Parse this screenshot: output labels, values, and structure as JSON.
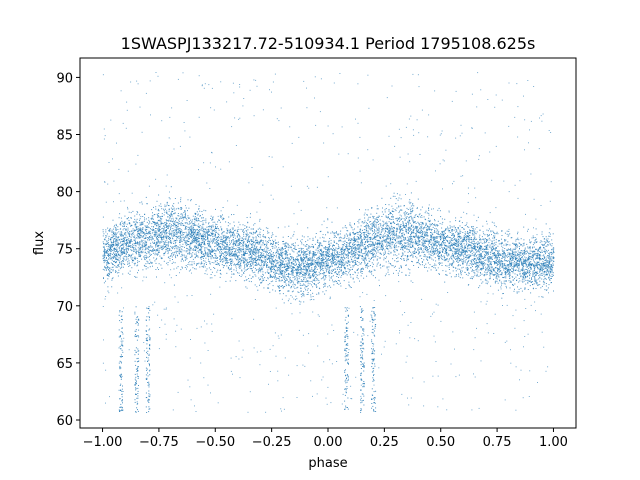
{
  "chart_data": {
    "type": "scatter",
    "title": "1SWASPJ133217.72-510934.1 Period 1795108.625s",
    "xlabel": "phase",
    "ylabel": "flux",
    "xlim": [
      -1.1,
      1.1
    ],
    "ylim": [
      59.3,
      91.7
    ],
    "xticks": [
      -1.0,
      -0.75,
      -0.5,
      -0.25,
      0.0,
      0.25,
      0.5,
      0.75,
      1.0
    ],
    "xtick_labels": [
      "−1.00",
      "−0.75",
      "−0.50",
      "−0.25",
      "0.00",
      "0.25",
      "0.50",
      "0.75",
      "1.00"
    ],
    "yticks": [
      60,
      65,
      70,
      75,
      80,
      85,
      90
    ],
    "ytick_labels": [
      "60",
      "65",
      "70",
      "75",
      "80",
      "85",
      "90"
    ],
    "grid": false,
    "marker_color": "#1f77b4",
    "x_range_data": [
      -1.0,
      1.0
    ],
    "y_range_data": [
      60.7,
      90.5
    ],
    "envelope": {
      "phase": [
        -1.0,
        -0.9,
        -0.8,
        -0.7,
        -0.6,
        -0.5,
        -0.4,
        -0.3,
        -0.2,
        -0.1,
        0.0,
        0.1,
        0.2,
        0.3,
        0.4,
        0.5,
        0.6,
        0.7,
        0.8,
        0.9,
        1.0
      ],
      "median_flux": [
        74.5,
        75.5,
        76.0,
        76.5,
        76.0,
        75.5,
        75.0,
        74.5,
        73.5,
        73.5,
        74.0,
        74.8,
        75.8,
        76.5,
        76.2,
        75.5,
        75.0,
        74.5,
        74.0,
        73.8,
        74.0
      ],
      "spread": [
        3.0,
        3.0,
        3.2,
        3.8,
        3.2,
        3.0,
        3.0,
        3.0,
        3.0,
        3.0,
        3.0,
        3.0,
        3.2,
        3.8,
        3.2,
        3.0,
        3.0,
        3.0,
        3.0,
        3.0,
        3.0
      ]
    },
    "dips": [
      {
        "phase": -0.92,
        "min_flux": 60.7
      },
      {
        "phase": -0.85,
        "min_flux": 60.7
      },
      {
        "phase": -0.8,
        "min_flux": 60.7
      },
      {
        "phase": 0.08,
        "min_flux": 60.7
      },
      {
        "phase": 0.15,
        "min_flux": 60.7
      },
      {
        "phase": 0.2,
        "min_flux": 60.7
      }
    ]
  }
}
